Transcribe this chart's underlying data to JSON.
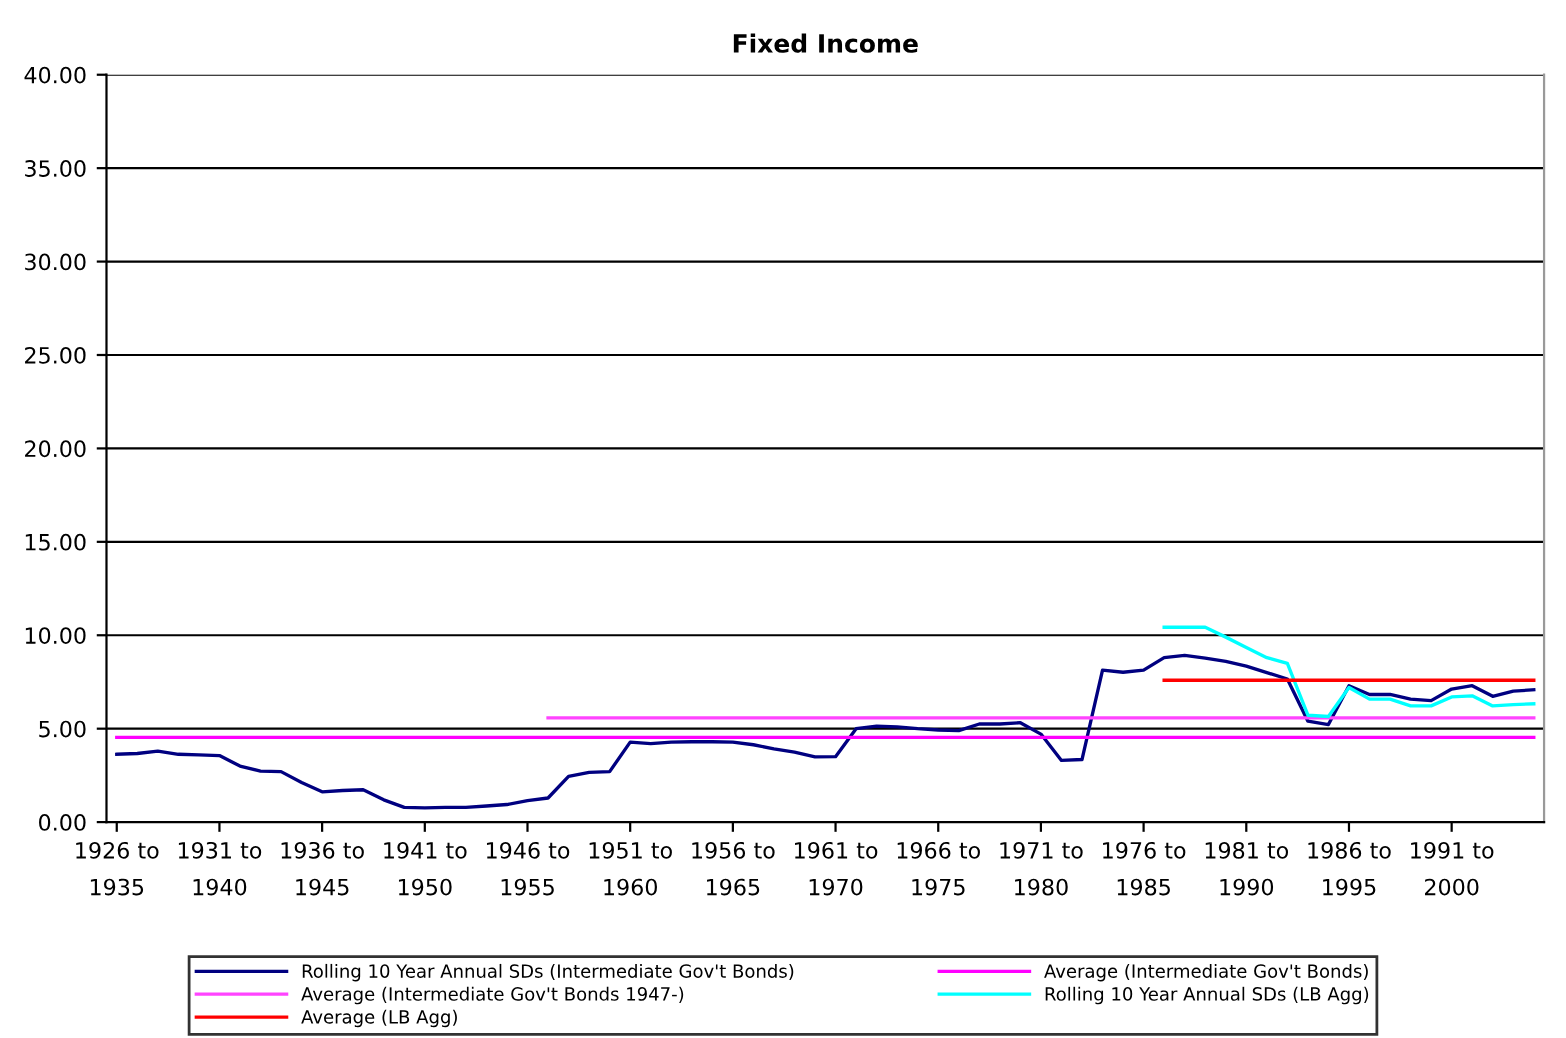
{
  "chart_data": {
    "type": "line",
    "title": "Fixed Income",
    "categories": [
      "1926 to\n1935",
      null,
      null,
      null,
      null,
      "1931 to\n1940",
      null,
      null,
      null,
      null,
      "1936 to\n1945",
      null,
      null,
      null,
      null,
      "1941 to\n1950",
      null,
      null,
      null,
      null,
      "1946 to\n1955",
      null,
      null,
      null,
      null,
      "1951 to\n1960",
      null,
      null,
      null,
      null,
      "1956 to\n1965",
      null,
      null,
      null,
      null,
      "1961 to\n1970",
      null,
      null,
      null,
      null,
      "1966 to\n1975",
      null,
      null,
      null,
      null,
      "1971 to\n1980",
      null,
      null,
      null,
      null,
      "1976 to\n1985",
      null,
      null,
      null,
      null,
      "1981 to\n1990",
      null,
      null,
      null,
      null,
      "1986 to\n1995",
      null,
      null,
      null,
      null,
      "1991 to\n2000",
      null,
      null,
      null,
      null
    ],
    "series": [
      {
        "name": "Rolling 10 Year Annual SDs (Intermediate Gov't Bonds)",
        "color": "#000080",
        "values": [
          3.63,
          3.67,
          3.8,
          3.63,
          3.6,
          3.56,
          3.0,
          2.73,
          2.7,
          2.12,
          1.62,
          1.69,
          1.73,
          1.19,
          0.79,
          0.76,
          0.79,
          0.79,
          0.86,
          0.94,
          1.15,
          1.29,
          2.45,
          2.66,
          2.7,
          4.28,
          4.2,
          4.28,
          4.3,
          4.3,
          4.28,
          4.14,
          3.92,
          3.74,
          3.49,
          3.5,
          5.0,
          5.14,
          5.1,
          5.0,
          4.93,
          4.9,
          5.25,
          5.25,
          5.32,
          4.71,
          3.3,
          3.35,
          8.13,
          8.02,
          8.13,
          8.8,
          8.92,
          8.78,
          8.6,
          8.35,
          8.0,
          7.66,
          5.4,
          5.22,
          7.3,
          6.83,
          6.83,
          6.58,
          6.5,
          7.12,
          7.3,
          6.73,
          7.01,
          7.08
        ]
      },
      {
        "name": "Average (Intermediate Gov't Bonds)",
        "color": "#ff00ff",
        "values": [
          4.53,
          4.53,
          4.53,
          4.53,
          4.53,
          4.53,
          4.53,
          4.53,
          4.53,
          4.53,
          4.53,
          4.53,
          4.53,
          4.53,
          4.53,
          4.53,
          4.53,
          4.53,
          4.53,
          4.53,
          4.53,
          4.53,
          4.53,
          4.53,
          4.53,
          4.53,
          4.53,
          4.53,
          4.53,
          4.53,
          4.53,
          4.53,
          4.53,
          4.53,
          4.53,
          4.53,
          4.53,
          4.53,
          4.53,
          4.53,
          4.53,
          4.53,
          4.53,
          4.53,
          4.53,
          4.53,
          4.53,
          4.53,
          4.53,
          4.53,
          4.53,
          4.53,
          4.53,
          4.53,
          4.53,
          4.53,
          4.53,
          4.53,
          4.53,
          4.53,
          4.53,
          4.53,
          4.53,
          4.53,
          4.53,
          4.53,
          4.53,
          4.53,
          4.53,
          4.53
        ]
      },
      {
        "name": "Average (Intermediate Gov't Bonds 1947-)",
        "color": "#ff44ff",
        "values": [
          null,
          null,
          null,
          null,
          null,
          null,
          null,
          null,
          null,
          null,
          null,
          null,
          null,
          null,
          null,
          null,
          null,
          null,
          null,
          null,
          null,
          5.58,
          5.58,
          5.58,
          5.58,
          5.58,
          5.58,
          5.58,
          5.58,
          5.58,
          5.58,
          5.58,
          5.58,
          5.58,
          5.58,
          5.58,
          5.58,
          5.58,
          5.58,
          5.58,
          5.58,
          5.58,
          5.58,
          5.58,
          5.58,
          5.58,
          5.58,
          5.58,
          5.58,
          5.58,
          5.58,
          5.58,
          5.58,
          5.58,
          5.58,
          5.58,
          5.58,
          5.58,
          5.58,
          5.58,
          5.58,
          5.58,
          5.58,
          5.58,
          5.58,
          5.58,
          5.58,
          5.58,
          5.58,
          5.58
        ]
      },
      {
        "name": "Rolling 10 Year Annual SDs (LB Agg)",
        "color": "#00ffff",
        "values": [
          null,
          null,
          null,
          null,
          null,
          null,
          null,
          null,
          null,
          null,
          null,
          null,
          null,
          null,
          null,
          null,
          null,
          null,
          null,
          null,
          null,
          null,
          null,
          null,
          null,
          null,
          null,
          null,
          null,
          null,
          null,
          null,
          null,
          null,
          null,
          null,
          null,
          null,
          null,
          null,
          null,
          null,
          null,
          null,
          null,
          null,
          null,
          null,
          null,
          null,
          null,
          10.43,
          10.43,
          10.43,
          9.9,
          9.35,
          8.8,
          8.5,
          5.72,
          5.65,
          7.2,
          6.58,
          6.58,
          6.22,
          6.22,
          6.7,
          6.76,
          6.22,
          6.29,
          6.33
        ]
      },
      {
        "name": "Average (LB Agg)",
        "color": "#ff0000",
        "values": [
          null,
          null,
          null,
          null,
          null,
          null,
          null,
          null,
          null,
          null,
          null,
          null,
          null,
          null,
          null,
          null,
          null,
          null,
          null,
          null,
          null,
          null,
          null,
          null,
          null,
          null,
          null,
          null,
          null,
          null,
          null,
          null,
          null,
          null,
          null,
          null,
          null,
          null,
          null,
          null,
          null,
          null,
          null,
          null,
          null,
          null,
          null,
          null,
          null,
          null,
          null,
          7.59,
          7.59,
          7.59,
          7.59,
          7.59,
          7.59,
          7.59,
          7.59,
          7.59,
          7.59,
          7.59,
          7.59,
          7.59,
          7.59,
          7.59,
          7.59,
          7.59,
          7.59,
          7.59
        ]
      }
    ],
    "ylim": [
      0,
      40
    ],
    "yticks": [
      {
        "value": 0,
        "label": "0.00"
      },
      {
        "value": 5,
        "label": "5.00"
      },
      {
        "value": 10,
        "label": "10.00"
      },
      {
        "value": 15,
        "label": "15.00"
      },
      {
        "value": 20,
        "label": "20.00"
      },
      {
        "value": 25,
        "label": "25.00"
      },
      {
        "value": 30,
        "label": "30.00"
      },
      {
        "value": 35,
        "label": "35.00"
      },
      {
        "value": 40,
        "label": "40.00"
      }
    ],
    "grid": "y",
    "legend": "bottom"
  }
}
